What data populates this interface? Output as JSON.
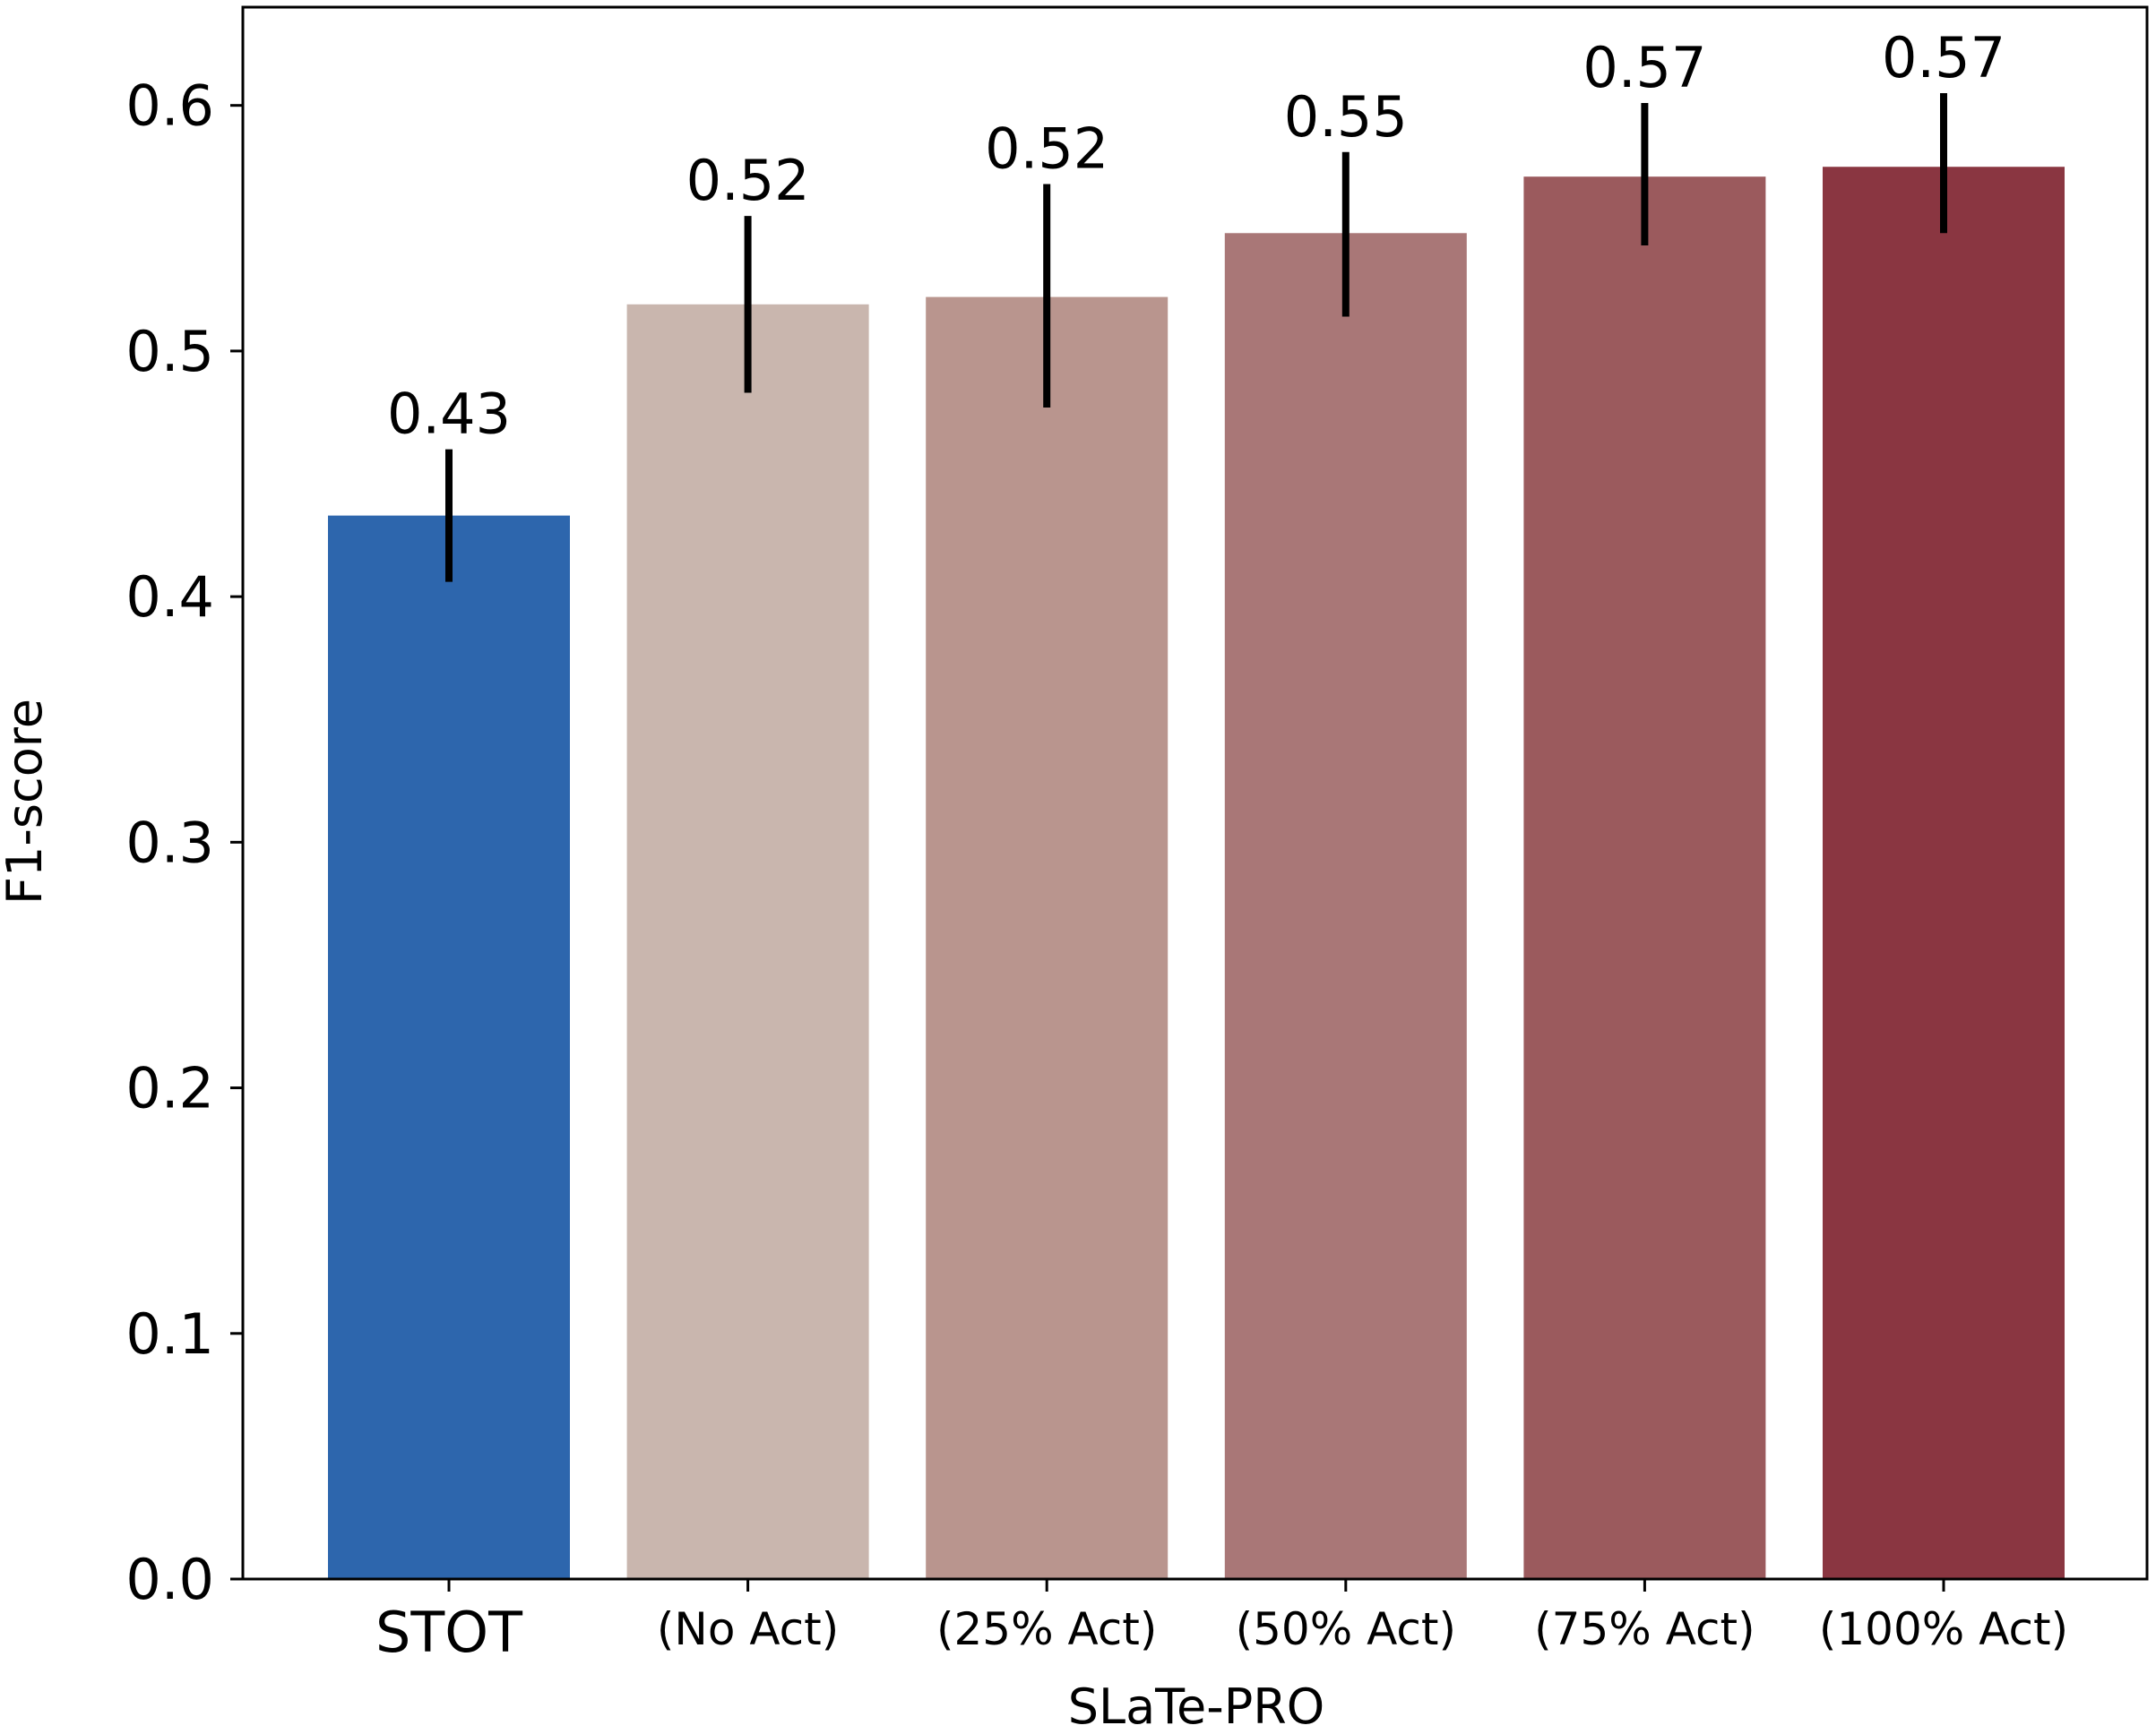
{
  "chart_data": {
    "type": "bar",
    "categories": [
      "STOT",
      "(No Act)",
      "(25% Act)",
      "(50% Act)",
      "(75% Act)",
      "(100% Act)"
    ],
    "values": [
      0.433,
      0.519,
      0.522,
      0.548,
      0.571,
      0.575
    ],
    "error_low": [
      0.406,
      0.483,
      0.477,
      0.514,
      0.543,
      0.548
    ],
    "error_high": [
      0.46,
      0.555,
      0.568,
      0.581,
      0.601,
      0.605
    ],
    "value_labels": [
      "0.43",
      "0.52",
      "0.52",
      "0.55",
      "0.57",
      "0.57"
    ],
    "colors": [
      "#2d66ad",
      "#c9b6ae",
      "#b9958e",
      "#a97777",
      "#9b5a5d",
      "#8a3641"
    ],
    "title": "",
    "xlabel": "SLaTe-PRO",
    "ylabel": "F1-score",
    "ylim": [
      0,
      0.64
    ],
    "yticks": [
      0.0,
      0.1,
      0.2,
      0.3,
      0.4,
      0.5,
      0.6
    ],
    "ytick_labels": [
      "0.0",
      "0.1",
      "0.2",
      "0.3",
      "0.4",
      "0.5",
      "0.6"
    ],
    "grid": false,
    "legend": false
  }
}
